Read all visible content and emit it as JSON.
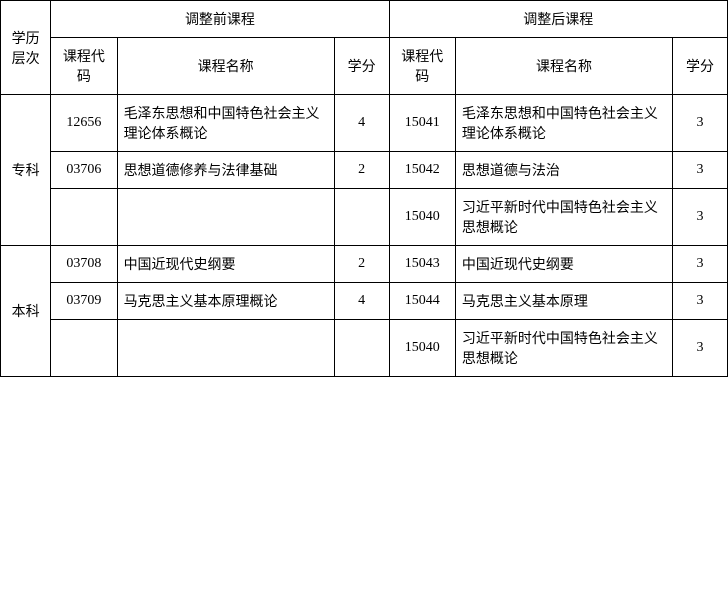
{
  "headers": {
    "level": "学历层次",
    "before": "调整前课程",
    "after": "调整后课程",
    "code": "课程代码",
    "name": "课程名称",
    "credit": "学分"
  },
  "levels": [
    {
      "label": "专科",
      "rows": [
        {
          "before": {
            "code": "12656",
            "name": "毛泽东思想和中国特色社会主义理论体系概论",
            "credit": "4"
          },
          "after": {
            "code": "15041",
            "name": "毛泽东思想和中国特色社会主义理论体系概论",
            "credit": "3"
          }
        },
        {
          "before": {
            "code": "03706",
            "name": "思想道德修养与法律基础",
            "credit": "2"
          },
          "after": {
            "code": "15042",
            "name": "思想道德与法治",
            "credit": "3"
          }
        },
        {
          "before": {
            "code": "",
            "name": "",
            "credit": ""
          },
          "after": {
            "code": "15040",
            "name": "习近平新时代中国特色社会主义思想概论",
            "credit": "3"
          }
        }
      ]
    },
    {
      "label": "本科",
      "rows": [
        {
          "before": {
            "code": "03708",
            "name": "中国近现代史纲要",
            "credit": "2"
          },
          "after": {
            "code": "15043",
            "name": "中国近现代史纲要",
            "credit": "3"
          }
        },
        {
          "before": {
            "code": "03709",
            "name": "马克思主义基本原理概论",
            "credit": "4"
          },
          "after": {
            "code": "15044",
            "name": "马克思主义基本原理",
            "credit": "3"
          }
        },
        {
          "before": {
            "code": "",
            "name": "",
            "credit": ""
          },
          "after": {
            "code": "15040",
            "name": "习近平新时代中国特色社会主义思想概论",
            "credit": "3"
          }
        }
      ]
    }
  ]
}
